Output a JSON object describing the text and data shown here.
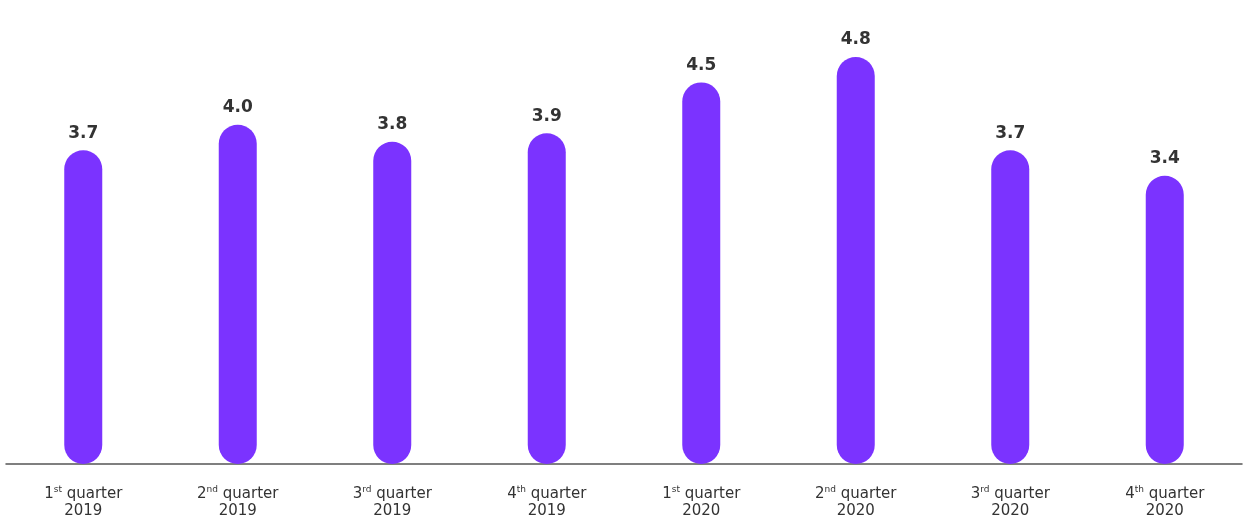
{
  "chart_data": {
    "type": "bar",
    "categories": [
      "1$^{st}$ quarter\n2019",
      "2$^{nd}$ quarter\n2019",
      "3$^{rd}$ quarter\n2019",
      "4$^{th}$ quarter\n2019",
      "1$^{st}$ quarter\n2020",
      "2$^{nd}$ quarter\n2020",
      "3$^{rd}$ quarter\n2020",
      "4$^{th}$ quarter\n2020"
    ],
    "values": [
      3.7,
      4.0,
      3.8,
      3.9,
      4.5,
      4.8,
      3.7,
      3.4
    ],
    "value_labels": [
      "3.7",
      "4.0",
      "3.8",
      "3.9",
      "4.5",
      "4.8",
      "3.7",
      "3.4"
    ],
    "color": "#7b33ff"
  }
}
